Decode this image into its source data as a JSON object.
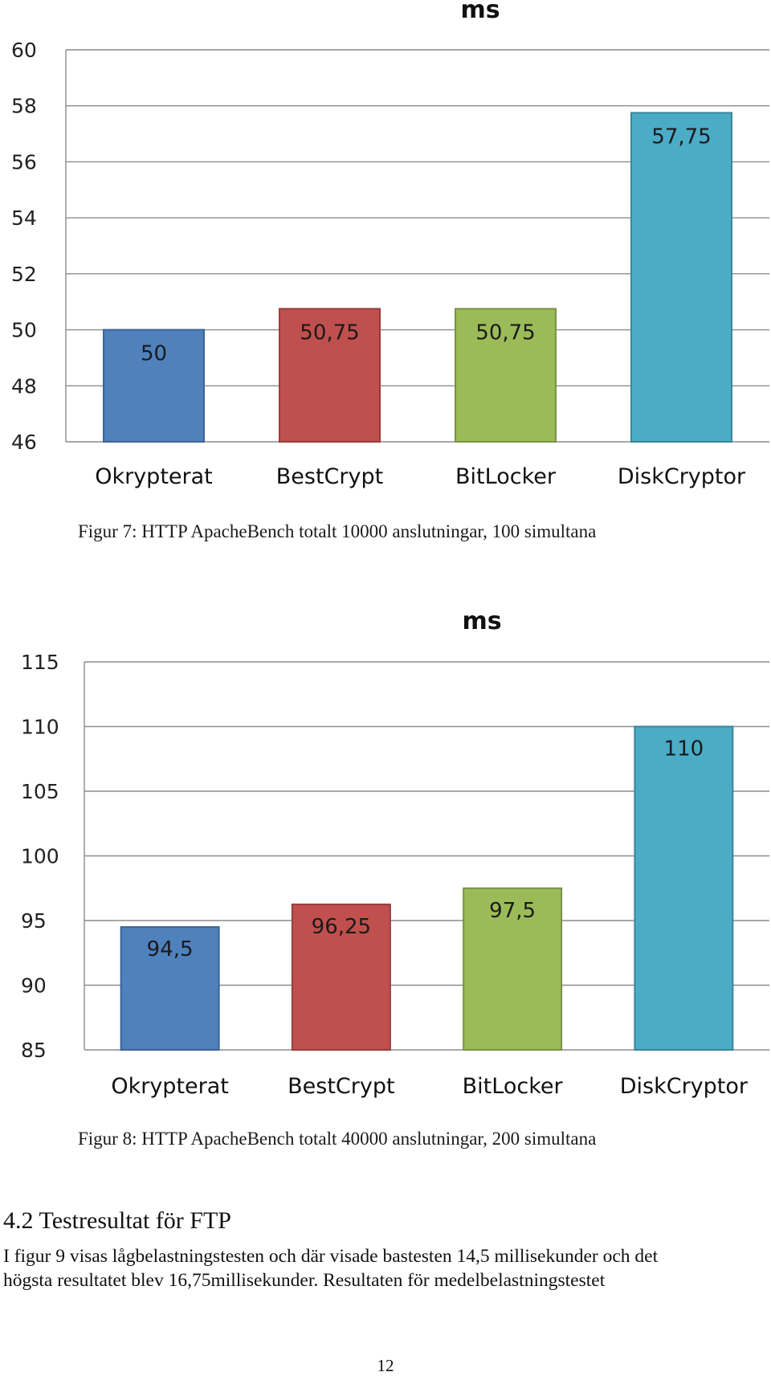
{
  "chart_data": [
    {
      "type": "bar",
      "title": "ms",
      "categories": [
        "Okrypterat",
        "BestCrypt",
        "BitLocker",
        "DiskCryptor"
      ],
      "values": [
        50,
        50.75,
        50.75,
        57.75
      ],
      "value_labels": [
        "50",
        "50,75",
        "50,75",
        "57,75"
      ],
      "ylim": [
        46,
        60
      ],
      "yticks": [
        46,
        48,
        50,
        52,
        54,
        56,
        58,
        60
      ],
      "grid": true,
      "legend": "none",
      "colors": [
        "#4f81bd",
        "#c0504d",
        "#9bbb59",
        "#4bacc6"
      ]
    },
    {
      "type": "bar",
      "title": "ms",
      "categories": [
        "Okrypterat",
        "BestCrypt",
        "BitLocker",
        "DiskCryptor"
      ],
      "values": [
        94.5,
        96.25,
        97.5,
        110
      ],
      "value_labels": [
        "94,5",
        "96,25",
        "97,5",
        "110"
      ],
      "ylim": [
        85,
        115
      ],
      "yticks": [
        85,
        90,
        95,
        100,
        105,
        110,
        115
      ],
      "grid": true,
      "legend": "none",
      "colors": [
        "#4f81bd",
        "#c0504d",
        "#9bbb59",
        "#4bacc6"
      ]
    }
  ],
  "captions": {
    "figure7": "Figur 7: HTTP ApacheBench totalt  10000 anslutningar, 100 simultana",
    "figure8": "Figur 8: HTTP ApacheBench totalt  40000 anslutningar, 200 simultana"
  },
  "section": {
    "heading": "4.2 Testresultat för FTP",
    "lines": [
      "I figur 9 visas lågbelastningstesten och där visade bastesten 14,5 millisekunder och det",
      "högsta resultatet blev 16,75millisekunder. Resultaten för medelbelastningstestet"
    ]
  },
  "page_number": "12"
}
